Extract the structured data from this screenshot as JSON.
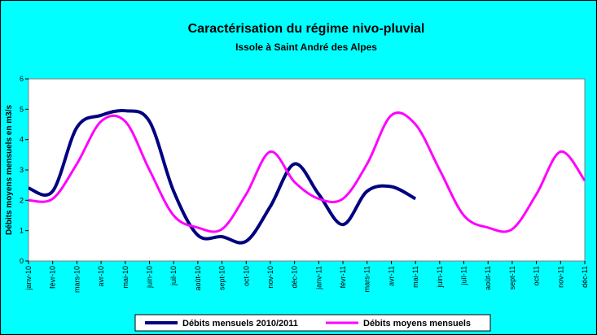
{
  "chart_data": {
    "type": "line",
    "title": "Caractérisation du régime nivo-pluvial",
    "subtitle": "Issole à Saint André des Alpes",
    "y_label": "Débits moyens mensuels en m3/s",
    "categories": [
      "janv-10",
      "févr-10",
      "mars-10",
      "avr-10",
      "mai-10",
      "juin-10",
      "juil-10",
      "août-10",
      "sept-10",
      "oct-10",
      "nov-10",
      "déc-10",
      "janv-11",
      "févr-11",
      "mars-11",
      "avr-11",
      "mai-11",
      "juin-11",
      "juil-11",
      "août-11",
      "sept-11",
      "oct-11",
      "nov-11",
      "déc-11"
    ],
    "series": [
      {
        "name": "Débits mensuels 2010/2011",
        "color": "#000080",
        "values": [
          2.4,
          2.3,
          4.4,
          4.8,
          4.95,
          4.6,
          2.3,
          0.85,
          0.8,
          0.65,
          1.8,
          3.2,
          2.2,
          1.2,
          2.3,
          2.45,
          2.05,
          null,
          null,
          null,
          null,
          null,
          null,
          null
        ]
      },
      {
        "name": "Débits moyens mensuels",
        "color": "#ff00ff",
        "values": [
          2.0,
          2.05,
          3.2,
          4.6,
          4.6,
          3.0,
          1.5,
          1.1,
          1.05,
          2.2,
          3.6,
          2.6,
          2.05,
          2.05,
          3.2,
          4.8,
          4.5,
          3.0,
          1.5,
          1.1,
          1.05,
          2.2,
          3.6,
          2.65
        ]
      }
    ],
    "ylim": [
      0,
      6
    ],
    "yticks": [
      0,
      1,
      2,
      3,
      4,
      5,
      6
    ],
    "grid": false
  }
}
